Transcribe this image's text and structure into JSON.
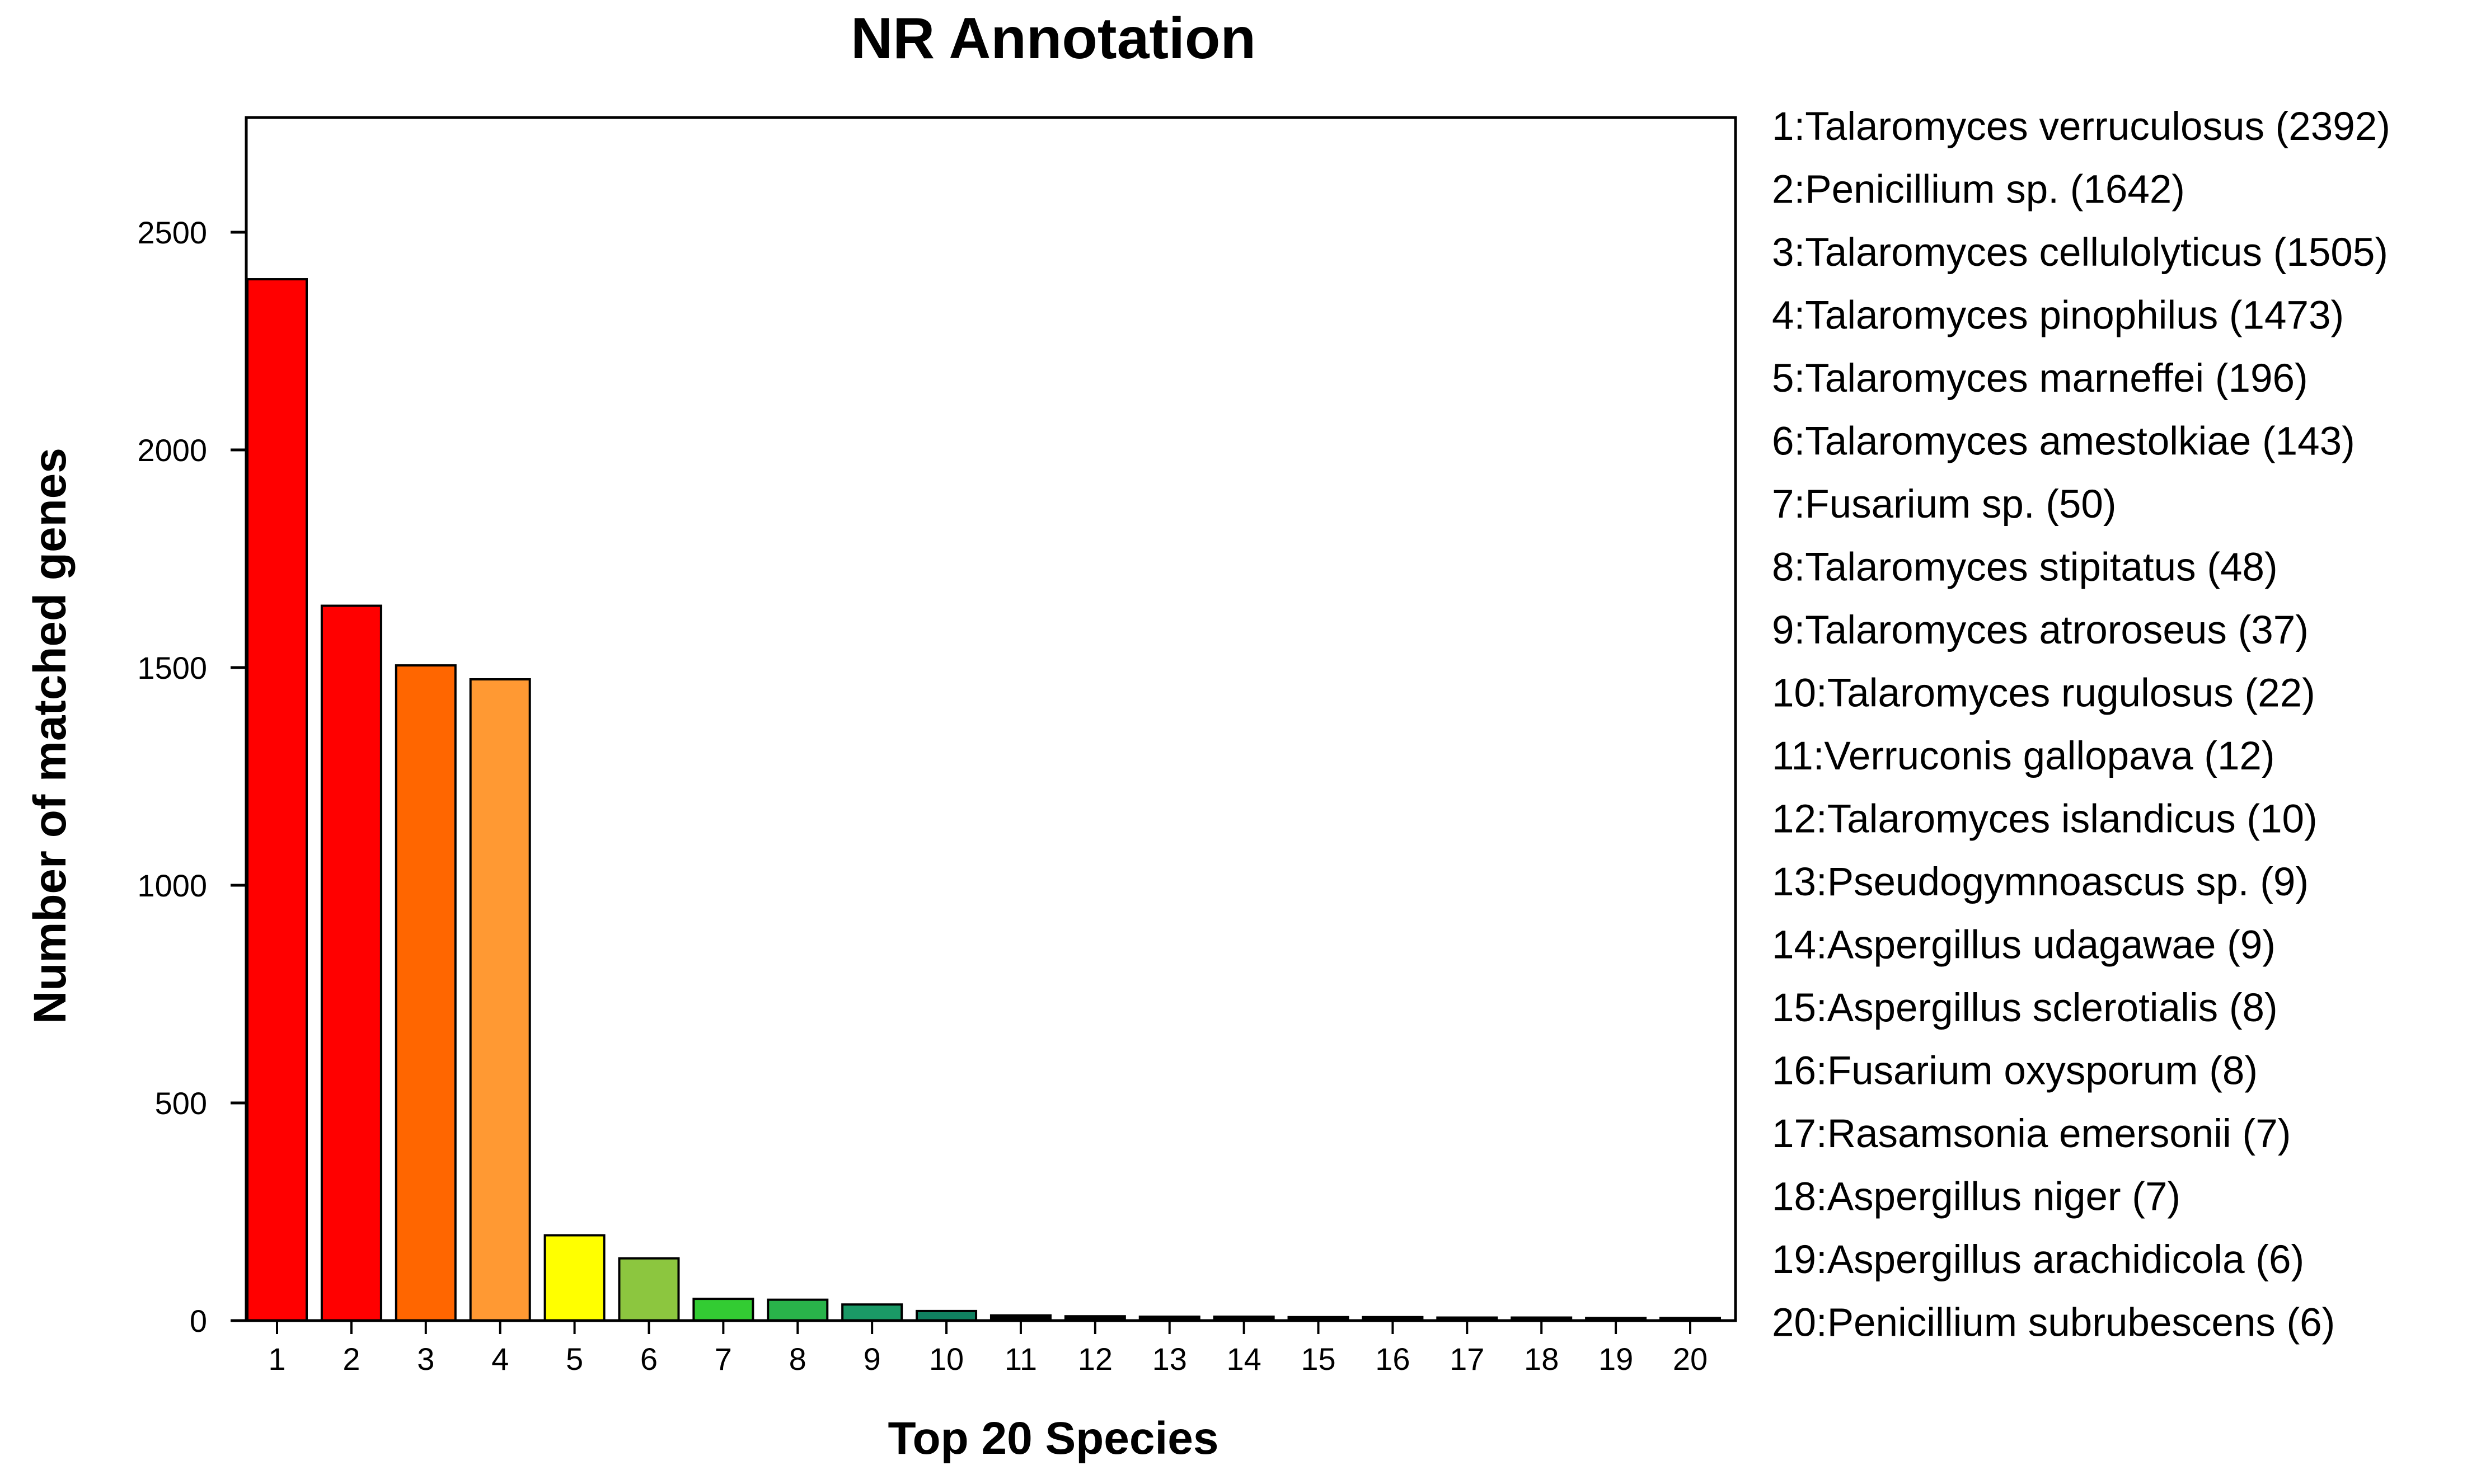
{
  "chart_data": {
    "type": "bar",
    "title": "NR Annotation",
    "xlabel": "Top 20 Species",
    "ylabel": "Number of matched genes",
    "ylim": [
      0,
      2750
    ],
    "y_ticks": [
      0,
      500,
      1000,
      1500,
      2000,
      2500
    ],
    "grid": false,
    "legend_position": "right",
    "categories": [
      "1",
      "2",
      "3",
      "4",
      "5",
      "6",
      "7",
      "8",
      "9",
      "10",
      "11",
      "12",
      "13",
      "14",
      "15",
      "16",
      "17",
      "18",
      "19",
      "20"
    ],
    "values": [
      2392,
      1642,
      1505,
      1473,
      196,
      143,
      50,
      48,
      37,
      22,
      12,
      10,
      9,
      9,
      8,
      8,
      7,
      7,
      6,
      6
    ],
    "bar_colors": [
      "#ff0000",
      "#ff0000",
      "#ff6600",
      "#ff9933",
      "#ffff00",
      "#8cc63f",
      "#33cc33",
      "#29b34a",
      "#1a9966",
      "#108060",
      "#000000",
      "#000000",
      "#000000",
      "#000000",
      "#000000",
      "#000000",
      "#000000",
      "#000000",
      "#000000",
      "#000000"
    ],
    "legend": [
      "1:Talaromyces verruculosus (2392)",
      "2:Penicillium sp. (1642)",
      "3:Talaromyces cellulolyticus (1505)",
      "4:Talaromyces pinophilus (1473)",
      "5:Talaromyces marneffei (196)",
      "6:Talaromyces amestolkiae (143)",
      "7:Fusarium sp. (50)",
      "8:Talaromyces stipitatus (48)",
      "9:Talaromyces atroroseus (37)",
      "10:Talaromyces rugulosus (22)",
      "11:Verruconis gallopava (12)",
      "12:Talaromyces islandicus (10)",
      "13:Pseudogymnoascus sp. (9)",
      "14:Aspergillus udagawae (9)",
      "15:Aspergillus sclerotialis (8)",
      "16:Fusarium oxysporum (8)",
      "17:Rasamsonia emersonii (7)",
      "18:Aspergillus niger (7)",
      "19:Aspergillus arachidicola (6)",
      "20:Penicillium subrubescens (6)"
    ]
  }
}
